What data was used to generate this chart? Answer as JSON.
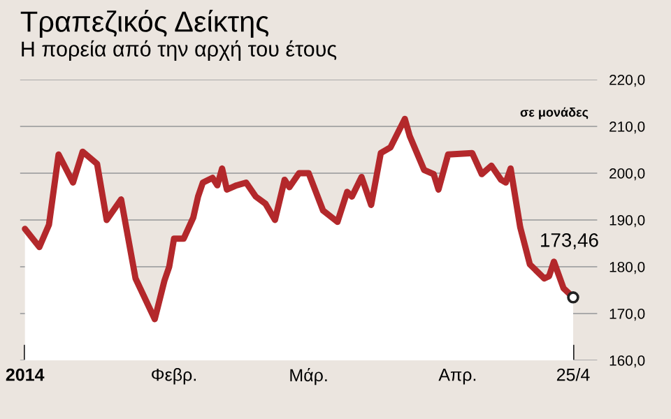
{
  "chart_data": {
    "type": "area",
    "title": "Τραπεζικός Δείκτης",
    "subtitle": "Η πορεία από την αρχή του έτους",
    "annotations": [
      "σε μονάδες",
      {
        "text": "173,46",
        "x": "2014-04-25",
        "y": 173.46
      }
    ],
    "series": [
      {
        "color": "#b3282b",
        "x": [
          "2014-01-01",
          "2014-01-04",
          "2014-01-06",
          "2014-01-08",
          "2014-01-11",
          "2014-01-13",
          "2014-01-16",
          "2014-01-18",
          "2014-01-21",
          "2014-01-24",
          "2014-01-28",
          "2014-01-30",
          "2014-01-31",
          "2014-02-01",
          "2014-02-03",
          "2014-02-05",
          "2014-02-06",
          "2014-02-07",
          "2014-02-09",
          "2014-02-10",
          "2014-02-11",
          "2014-02-12",
          "2014-02-14",
          "2014-02-16",
          "2014-02-18",
          "2014-02-20",
          "2014-02-22",
          "2014-02-24",
          "2014-02-25",
          "2014-02-27",
          "2014-03-01",
          "2014-03-04",
          "2014-03-07",
          "2014-03-09",
          "2014-03-10",
          "2014-03-12",
          "2014-03-14",
          "2014-03-16",
          "2014-03-18",
          "2014-03-21",
          "2014-03-22",
          "2014-03-25",
          "2014-03-27",
          "2014-03-28",
          "2014-03-30",
          "2014-04-04",
          "2014-04-06",
          "2014-04-08",
          "2014-04-10",
          "2014-04-11",
          "2014-04-12",
          "2014-04-14",
          "2014-04-16",
          "2014-04-19",
          "2014-04-20",
          "2014-04-21",
          "2014-04-23",
          "2014-04-25"
        ],
        "values": [
          188.1,
          184.2,
          189,
          204,
          198,
          204.6,
          202,
          190,
          194.4,
          177.5,
          168.8,
          177,
          180,
          186,
          186,
          190.5,
          195,
          198,
          199,
          197.4,
          201,
          196.5,
          197.4,
          198,
          195,
          193.5,
          190,
          198.6,
          197,
          200,
          200,
          192,
          189.6,
          196,
          195,
          199.2,
          193.2,
          204.3,
          205.5,
          211.6,
          208,
          200.7,
          199.8,
          196.5,
          204,
          204.3,
          199.8,
          201.6,
          198.6,
          198,
          201,
          188.4,
          180.5,
          177.5,
          178,
          181.1,
          175.4,
          173.46
        ]
      }
    ],
    "xlim": [
      "2013-12-31",
      "2014-04-30"
    ],
    "xticks": [
      {
        "value": "2014-01-01",
        "label": "2014"
      },
      {
        "value": "2014-02-01",
        "label": "Φεβρ."
      },
      {
        "value": "2014-03-01",
        "label": "Μάρ."
      },
      {
        "value": "2014-04-01",
        "label": "Απρ."
      },
      {
        "value": "2014-04-25",
        "label": "25/4"
      }
    ],
    "ylim": [
      160,
      220
    ],
    "yticks": [
      {
        "value": 160,
        "label": "160,0"
      },
      {
        "value": 170,
        "label": "170,0"
      },
      {
        "value": 180,
        "label": "180,0"
      },
      {
        "value": 190,
        "label": "190,0"
      },
      {
        "value": 200,
        "label": "200,0"
      },
      {
        "value": 210,
        "label": "210,0"
      },
      {
        "value": 220,
        "label": "220,0"
      }
    ],
    "grid": "y",
    "marker": "none",
    "line_style": "solid"
  }
}
